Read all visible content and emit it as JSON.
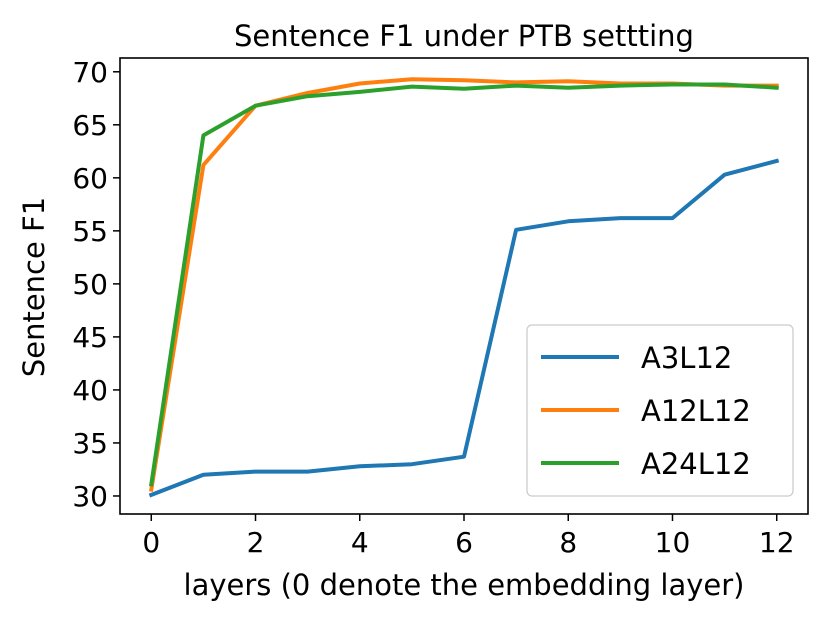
{
  "chart_data": {
    "type": "line",
    "title": "Sentence F1 under PTB settting",
    "xlabel": "layers (0 denote the embedding layer)",
    "ylabel": "Sentence F1",
    "xlim": [
      -0.6,
      12.6
    ],
    "ylim": [
      28.3,
      71.3
    ],
    "x_ticks": [
      0,
      2,
      4,
      6,
      8,
      10,
      12
    ],
    "y_ticks": [
      30,
      35,
      40,
      45,
      50,
      55,
      60,
      65,
      70
    ],
    "grid": false,
    "legend_position": "lower-right",
    "x": [
      0,
      1,
      2,
      3,
      4,
      5,
      6,
      7,
      8,
      9,
      10,
      11,
      12
    ],
    "series": [
      {
        "name": "A3L12",
        "color": "#1f77b4",
        "values": [
          30.1,
          32.0,
          32.3,
          32.3,
          32.8,
          33.0,
          33.7,
          55.1,
          55.9,
          56.2,
          56.2,
          60.3,
          61.6
        ]
      },
      {
        "name": "A12L12",
        "color": "#ff7f0e",
        "values": [
          30.6,
          61.2,
          66.8,
          68.0,
          68.9,
          69.3,
          69.2,
          69.0,
          69.1,
          68.9,
          68.9,
          68.7,
          68.7
        ]
      },
      {
        "name": "A24L12",
        "color": "#2ca02c",
        "values": [
          31.1,
          64.0,
          66.8,
          67.7,
          68.1,
          68.6,
          68.4,
          68.7,
          68.5,
          68.7,
          68.8,
          68.8,
          68.5
        ]
      }
    ]
  }
}
